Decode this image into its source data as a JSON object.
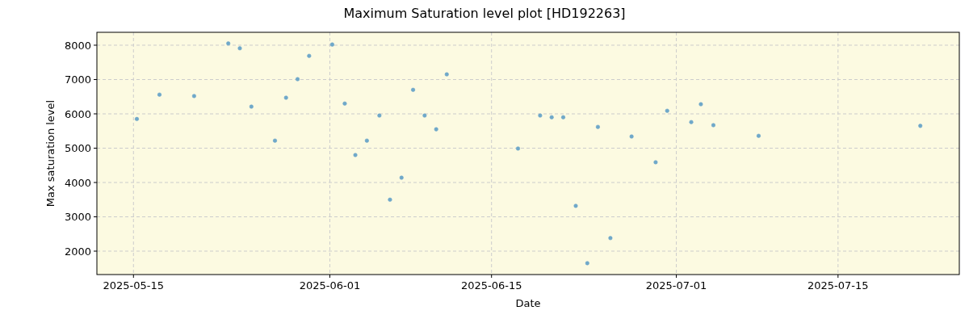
{
  "chart_data": {
    "type": "scatter",
    "title": "Maximum Saturation level plot [HD192263]",
    "xlabel": "Date",
    "ylabel": "Max saturation level",
    "xlim": [
      "2025-05-11T20:00",
      "2025-07-25T12:00"
    ],
    "xticks": [
      "2025-05-15",
      "2025-06-01",
      "2025-06-15",
      "2025-07-01",
      "2025-07-15"
    ],
    "ylim": [
      1318,
      8376
    ],
    "yticks": [
      2000,
      3000,
      4000,
      5000,
      6000,
      7000,
      8000
    ],
    "grid": true,
    "marker": "circle",
    "series": [
      {
        "color": "#6fa8c9",
        "x": [
          "2025-05-15T07:00",
          "2025-05-17T06:00",
          "2025-05-20T06:00",
          "2025-05-23T05:00",
          "2025-05-24T05:00",
          "2025-05-25T05:00",
          "2025-05-27T06:00",
          "2025-05-28T05:00",
          "2025-05-29T05:00",
          "2025-05-30T05:00",
          "2025-06-01T05:00",
          "2025-06-02T07:00",
          "2025-06-03T05:00",
          "2025-06-04T05:00",
          "2025-06-05T07:00",
          "2025-06-06T05:00",
          "2025-06-07T05:00",
          "2025-06-08T05:00",
          "2025-06-09T05:00",
          "2025-06-10T05:00",
          "2025-06-11T03:00",
          "2025-06-17T07:00",
          "2025-06-19T05:00",
          "2025-06-20T05:00",
          "2025-06-21T05:00",
          "2025-06-22T07:00",
          "2025-06-23T07:00",
          "2025-06-24T05:00",
          "2025-06-25T07:00",
          "2025-06-27T03:00",
          "2025-06-29T05:00",
          "2025-06-30T05:00",
          "2025-07-02T07:00",
          "2025-07-03T03:00",
          "2025-07-04T05:00",
          "2025-07-08T03:00",
          "2025-07-22T03:00"
        ],
        "values": [
          5850,
          6560,
          6520,
          8050,
          7910,
          6210,
          5220,
          6470,
          7010,
          7690,
          8020,
          6300,
          4800,
          5220,
          5950,
          3500,
          4140,
          6700,
          5950,
          5550,
          7150,
          4990,
          5950,
          5900,
          5900,
          3320,
          1650,
          5620,
          2380,
          5340,
          4590,
          6090,
          5760,
          6280,
          5670,
          5360,
          5650
        ]
      }
    ]
  }
}
